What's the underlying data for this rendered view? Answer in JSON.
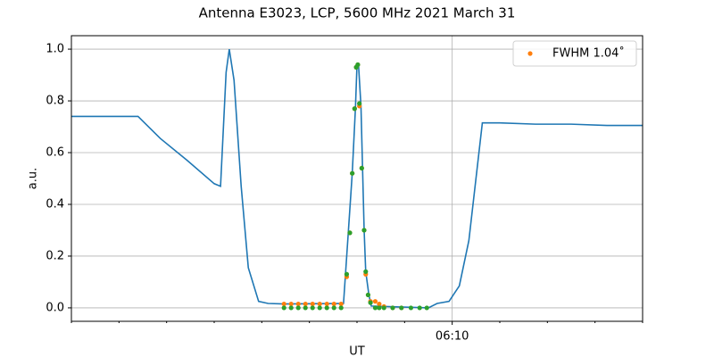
{
  "chart_data": {
    "type": "line",
    "title": "Antenna E3023, LCP, 5600 MHz 2021 March 31",
    "x_label": "UT",
    "y_label": "a.u.",
    "xlim": [
      "06:02:00",
      "06:14:00"
    ],
    "xticks": [
      {
        "value": "06:10:00",
        "label": "06:10"
      }
    ],
    "xminorticks": [
      "06:02:00",
      "06:03:00",
      "06:04:00",
      "06:05:00",
      "06:06:00",
      "06:07:00",
      "06:08:00",
      "06:09:00",
      "06:11:00",
      "06:12:00",
      "06:13:00",
      "06:14:00"
    ],
    "ylim": [
      -0.052,
      1.052
    ],
    "yticks": [
      {
        "value": 0,
        "label": "0.0"
      },
      0.2,
      0.4,
      0.6,
      0.8,
      {
        "value": 1,
        "label": "1.0"
      }
    ],
    "grid": true,
    "legend": "upper right",
    "series": [
      {
        "type": "line",
        "color": "#1f77b4",
        "x": [
          "06:02:00",
          "06:03:24",
          "06:03:52",
          "06:04:26",
          "06:05:00",
          "06:05:08",
          "06:05:15",
          "06:05:19",
          "06:05:25",
          "06:05:34",
          "06:05:43",
          "06:05:56",
          "06:06:08",
          "06:06:28",
          "06:07:43",
          "06:07:49",
          "06:07:54",
          "06:07:58",
          "06:08:00",
          "06:08:02",
          "06:08:05",
          "06:08:07",
          "06:08:09",
          "06:08:11",
          "06:08:15",
          "06:08:18",
          "06:09:30",
          "06:09:41",
          "06:09:56",
          "06:10:09",
          "06:10:21",
          "06:10:38",
          "06:11:00",
          "06:11:45",
          "06:12:30",
          "06:13:15",
          "06:14:00"
        ],
        "values": [
          0.74,
          0.74,
          0.655,
          0.57,
          0.48,
          0.47,
          0.91,
          1.0,
          0.88,
          0.47,
          0.155,
          0.025,
          0.017,
          0.015,
          0.017,
          0.29,
          0.52,
          0.77,
          0.94,
          0.935,
          0.78,
          0.54,
          0.3,
          0.14,
          0.05,
          0.007,
          0.0,
          0.017,
          0.025,
          0.085,
          0.26,
          0.715,
          0.715,
          0.71,
          0.71,
          0.705,
          0.705
        ]
      },
      {
        "type": "scatter",
        "name": "FWHM 1.04˚",
        "color": "#ff7f0e",
        "x": [
          "06:06:28",
          "06:06:37",
          "06:06:46",
          "06:06:55",
          "06:07:04",
          "06:07:13",
          "06:07:22",
          "06:07:31",
          "06:07:40",
          "06:07:47",
          "06:07:51",
          "06:07:54",
          "06:07:57",
          "06:07:59",
          "06:08:01",
          "06:08:03",
          "06:08:06",
          "06:08:09",
          "06:08:11",
          "06:08:14",
          "06:08:17",
          "06:08:23",
          "06:08:28",
          "06:08:34",
          "06:08:45",
          "06:08:56"
        ],
        "values": [
          0.015,
          0.015,
          0.015,
          0.015,
          0.015,
          0.015,
          0.015,
          0.015,
          0.015,
          0.12,
          0.29,
          0.52,
          0.77,
          0.93,
          0.94,
          0.78,
          0.54,
          0.3,
          0.13,
          0.05,
          0.025,
          0.025,
          0.015,
          0.005,
          0.0,
          0.0
        ]
      },
      {
        "type": "scatter",
        "color": "#2ca02c",
        "x": [
          "06:06:28",
          "06:06:37",
          "06:06:46",
          "06:06:55",
          "06:07:04",
          "06:07:13",
          "06:07:22",
          "06:07:31",
          "06:07:40",
          "06:07:47",
          "06:07:51",
          "06:07:54",
          "06:07:57",
          "06:07:59",
          "06:08:01",
          "06:08:03",
          "06:08:06",
          "06:08:09",
          "06:08:11",
          "06:08:14",
          "06:08:17",
          "06:08:23",
          "06:08:28",
          "06:08:34",
          "06:08:45",
          "06:08:56",
          "06:09:08",
          "06:09:19",
          "06:09:28"
        ],
        "values": [
          0.0,
          0.0,
          0.0,
          0.0,
          0.0,
          0.0,
          0.0,
          0.0,
          0.0,
          0.13,
          0.29,
          0.52,
          0.77,
          0.93,
          0.94,
          0.79,
          0.54,
          0.3,
          0.14,
          0.05,
          0.02,
          0.0,
          0.0,
          0.0,
          0.0,
          0.0,
          0.0,
          0.0,
          0.0
        ]
      }
    ]
  }
}
